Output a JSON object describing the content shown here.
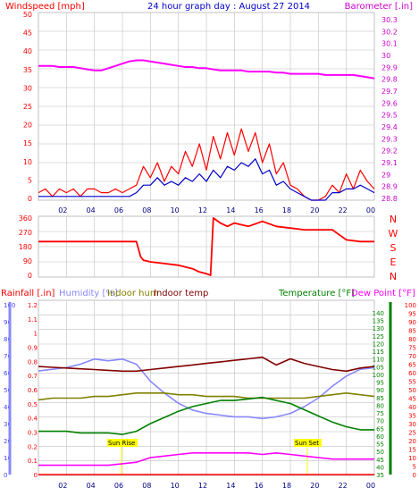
{
  "header": {
    "left_title": "Windspeed [mph]",
    "center_title": "24 hour graph day : August 27 2014",
    "right_title": "Barometer [.in]"
  },
  "colors": {
    "background": "#ffffff",
    "grid": "#c0c0c0",
    "windspeed": "#ff0000",
    "windavg": "#0000cc",
    "barometer": "#ff00ff",
    "direction": "#ff0000",
    "rainfall": "#ff0000",
    "humidity": "#8888ff",
    "indoor_hum": "#808000",
    "indoor_temp": "#800000",
    "temperature": "#008000",
    "dew_point": "#ff00ff",
    "sun_label": "#ffff00",
    "axis_left_top": "#ff0000",
    "axis_right_top": "#cc00cc",
    "axis_left_bottom": "#4444ff",
    "axis_right_bottom": "#008000",
    "axis_far_right_bottom": "#ff0000",
    "title_center": "#0000cc",
    "hour_labels": "#000080"
  },
  "hours": [
    "02",
    "04",
    "06",
    "08",
    "10",
    "12",
    "14",
    "16",
    "18",
    "20",
    "22",
    "00"
  ],
  "sun_labels": {
    "sunrise": "Sun Rise",
    "sunset": "Sun Set",
    "sun_text_bottom": "Sun Se"
  },
  "chart_data": [
    {
      "type": "line",
      "name": "wind-barometer",
      "title": "24 hour graph day : August 27 2014",
      "left_axis": {
        "label": "Windspeed [mph]",
        "ticks": [
          "50",
          "45",
          "40",
          "35",
          "30",
          "25",
          "20",
          "15",
          "10",
          "5",
          "0"
        ],
        "ylim": [
          0,
          50
        ]
      },
      "right_axis": {
        "label": "Barometer [.in]",
        "ticks": [
          "30.3",
          "30.2",
          "30.1",
          "30",
          "29.9",
          "29.8",
          "29.7",
          "29.6",
          "29.5",
          "29.4",
          "29.3",
          "29.2",
          "29.1",
          "29",
          "28.9",
          "28.8"
        ],
        "ylim": [
          28.75,
          30.35
        ]
      },
      "x": [
        0,
        0.5,
        1,
        1.5,
        2,
        2.5,
        3,
        3.5,
        4,
        4.5,
        5,
        5.5,
        6,
        6.5,
        7,
        7.5,
        8,
        8.5,
        9,
        9.5,
        10,
        10.5,
        11,
        11.5,
        12,
        12.5,
        13,
        13.5,
        14,
        14.5,
        15,
        15.5,
        16,
        16.5,
        17,
        17.5,
        18,
        18.5,
        19,
        19.5,
        20,
        20.5,
        21,
        21.5,
        22,
        22.5,
        23,
        23.5,
        24
      ],
      "series": [
        {
          "name": "Windspeed",
          "values": [
            2,
            3,
            1,
            3,
            2,
            3,
            1,
            3,
            3,
            2,
            2,
            3,
            2,
            3,
            4,
            9,
            6,
            10,
            5,
            9,
            7,
            13,
            9,
            15,
            8,
            17,
            11,
            18,
            12,
            19,
            13,
            18,
            10,
            15,
            7,
            10,
            4,
            3,
            1,
            0,
            0,
            1,
            4,
            2,
            7,
            3,
            8,
            5,
            3
          ]
        },
        {
          "name": "Wind average",
          "values": [
            1,
            1,
            1,
            1,
            1,
            1,
            1,
            1,
            1,
            1,
            1,
            1,
            1,
            1,
            2,
            4,
            4,
            6,
            4,
            5,
            4,
            6,
            5,
            7,
            5,
            8,
            6,
            9,
            8,
            10,
            9,
            11,
            7,
            8,
            4,
            5,
            3,
            2,
            1,
            0,
            0,
            0,
            2,
            2,
            3,
            3,
            4,
            3,
            2
          ]
        },
        {
          "name": "Barometer",
          "values": [
            29.94,
            29.94,
            29.94,
            29.93,
            29.93,
            29.93,
            29.92,
            29.91,
            29.9,
            29.9,
            29.92,
            29.94,
            29.96,
            29.98,
            29.99,
            29.99,
            29.98,
            29.97,
            29.96,
            29.95,
            29.94,
            29.93,
            29.93,
            29.92,
            29.92,
            29.91,
            29.9,
            29.9,
            29.9,
            29.9,
            29.89,
            29.89,
            29.89,
            29.89,
            29.88,
            29.88,
            29.87,
            29.87,
            29.87,
            29.87,
            29.87,
            29.86,
            29.86,
            29.86,
            29.86,
            29.86,
            29.85,
            29.84,
            29.83
          ]
        }
      ],
      "grid": true
    },
    {
      "type": "line",
      "name": "wind-direction",
      "left_axis": {
        "ticks": [
          "360",
          "270",
          "180",
          "90",
          "0"
        ],
        "ylim": [
          0,
          360
        ]
      },
      "right_axis": {
        "ticks": [
          "N",
          "W",
          "S",
          "E",
          "N"
        ]
      },
      "x": [
        0,
        1,
        2,
        3,
        4,
        5,
        6,
        7,
        7.3,
        7.5,
        8,
        9,
        10,
        10.5,
        11,
        11.5,
        12,
        12.3,
        12.5,
        13,
        13.5,
        14,
        15,
        16,
        17,
        18,
        19,
        20,
        21,
        22,
        23,
        24
      ],
      "series": [
        {
          "name": "Direction",
          "values": [
            210,
            210,
            210,
            210,
            210,
            210,
            210,
            210,
            120,
            100,
            90,
            80,
            70,
            60,
            50,
            30,
            20,
            10,
            350,
            320,
            300,
            320,
            300,
            330,
            300,
            290,
            280,
            280,
            280,
            220,
            210,
            210
          ]
        }
      ],
      "grid": true
    },
    {
      "type": "line",
      "name": "temp-humidity-rain",
      "labels": {
        "rainfall": "Rainfall [.in]",
        "humidity": "Humidity [%]",
        "indoor_hum": "Indoor hum",
        "indoor_temp": "Indoor temp",
        "temperature": "Temperature [°F]",
        "dew_point": "Dew Point [°F]"
      },
      "rain_axis": {
        "ticks": [
          "1.2",
          "1.1",
          "1",
          "0.9",
          "0.8",
          "0.7",
          "0.6",
          "0.5",
          "0.4",
          "0.3",
          "0.2",
          "0.1",
          "0"
        ],
        "ylim": [
          0,
          1.2
        ]
      },
      "hum_axis": {
        "ticks": [
          "100",
          "90",
          "80",
          "70",
          "60",
          "50",
          "40",
          "30",
          "20",
          "10",
          "0"
        ],
        "ylim": [
          0,
          100
        ]
      },
      "temp_axis": {
        "ticks": [
          "140",
          "135",
          "130",
          "125",
          "120",
          "115",
          "110",
          "105",
          "100",
          "95",
          "90",
          "85",
          "80",
          "75",
          "70",
          "65",
          "60",
          "55",
          "50",
          "45",
          "40",
          "35"
        ],
        "ylim": [
          32,
          142
        ]
      },
      "dew_axis": {
        "ticks": [
          "100",
          "95",
          "90",
          "85",
          "80",
          "75",
          "70",
          "65",
          "60",
          "55",
          "50",
          "45",
          "40",
          "35",
          "30",
          "25",
          "20",
          "15",
          "10",
          "5",
          "0"
        ]
      },
      "x": [
        0,
        1,
        2,
        3,
        4,
        5,
        6,
        7,
        8,
        9,
        10,
        11,
        12,
        13,
        14,
        15,
        16,
        17,
        18,
        19,
        20,
        21,
        22,
        23,
        24
      ],
      "series": [
        {
          "name": "Rainfall",
          "values": [
            0,
            0,
            0,
            0,
            0,
            0,
            0,
            0,
            0,
            0,
            0,
            0,
            0,
            0,
            0,
            0,
            0,
            0,
            0,
            0,
            0,
            0,
            0,
            0,
            0
          ]
        },
        {
          "name": "Humidity",
          "values": [
            61,
            62,
            63,
            65,
            68,
            67,
            68,
            65,
            55,
            48,
            42,
            38,
            36,
            35,
            34,
            34,
            33,
            34,
            36,
            40,
            45,
            52,
            58,
            62,
            63
          ]
        },
        {
          "name": "Indoor hum",
          "values": [
            44,
            45,
            45,
            45,
            46,
            46,
            47,
            48,
            48,
            48,
            47,
            47,
            46,
            46,
            46,
            45,
            45,
            45,
            45,
            45,
            46,
            47,
            48,
            47,
            46
          ]
        },
        {
          "name": "Indoor temp",
          "values": [
            102,
            101.5,
            101,
            100.5,
            100,
            99.5,
            99,
            99,
            100,
            101,
            102,
            103,
            104,
            105,
            106,
            107,
            108,
            103,
            107,
            104,
            102,
            100,
            99,
            101,
            102
          ]
        },
        {
          "name": "Temperature",
          "values": [
            60,
            60,
            60,
            59,
            59,
            59,
            58,
            60,
            65,
            69,
            73,
            76,
            78,
            80,
            80,
            81,
            82,
            80,
            78,
            74,
            70,
            66,
            63,
            61,
            61
          ]
        },
        {
          "name": "Dew Point",
          "values": [
            38,
            38,
            38,
            38,
            38,
            38,
            39,
            40,
            43,
            44,
            45,
            46,
            46,
            46,
            46,
            46,
            45,
            46,
            45,
            44,
            43,
            42,
            42,
            42,
            42
          ]
        }
      ],
      "grid": true
    }
  ]
}
